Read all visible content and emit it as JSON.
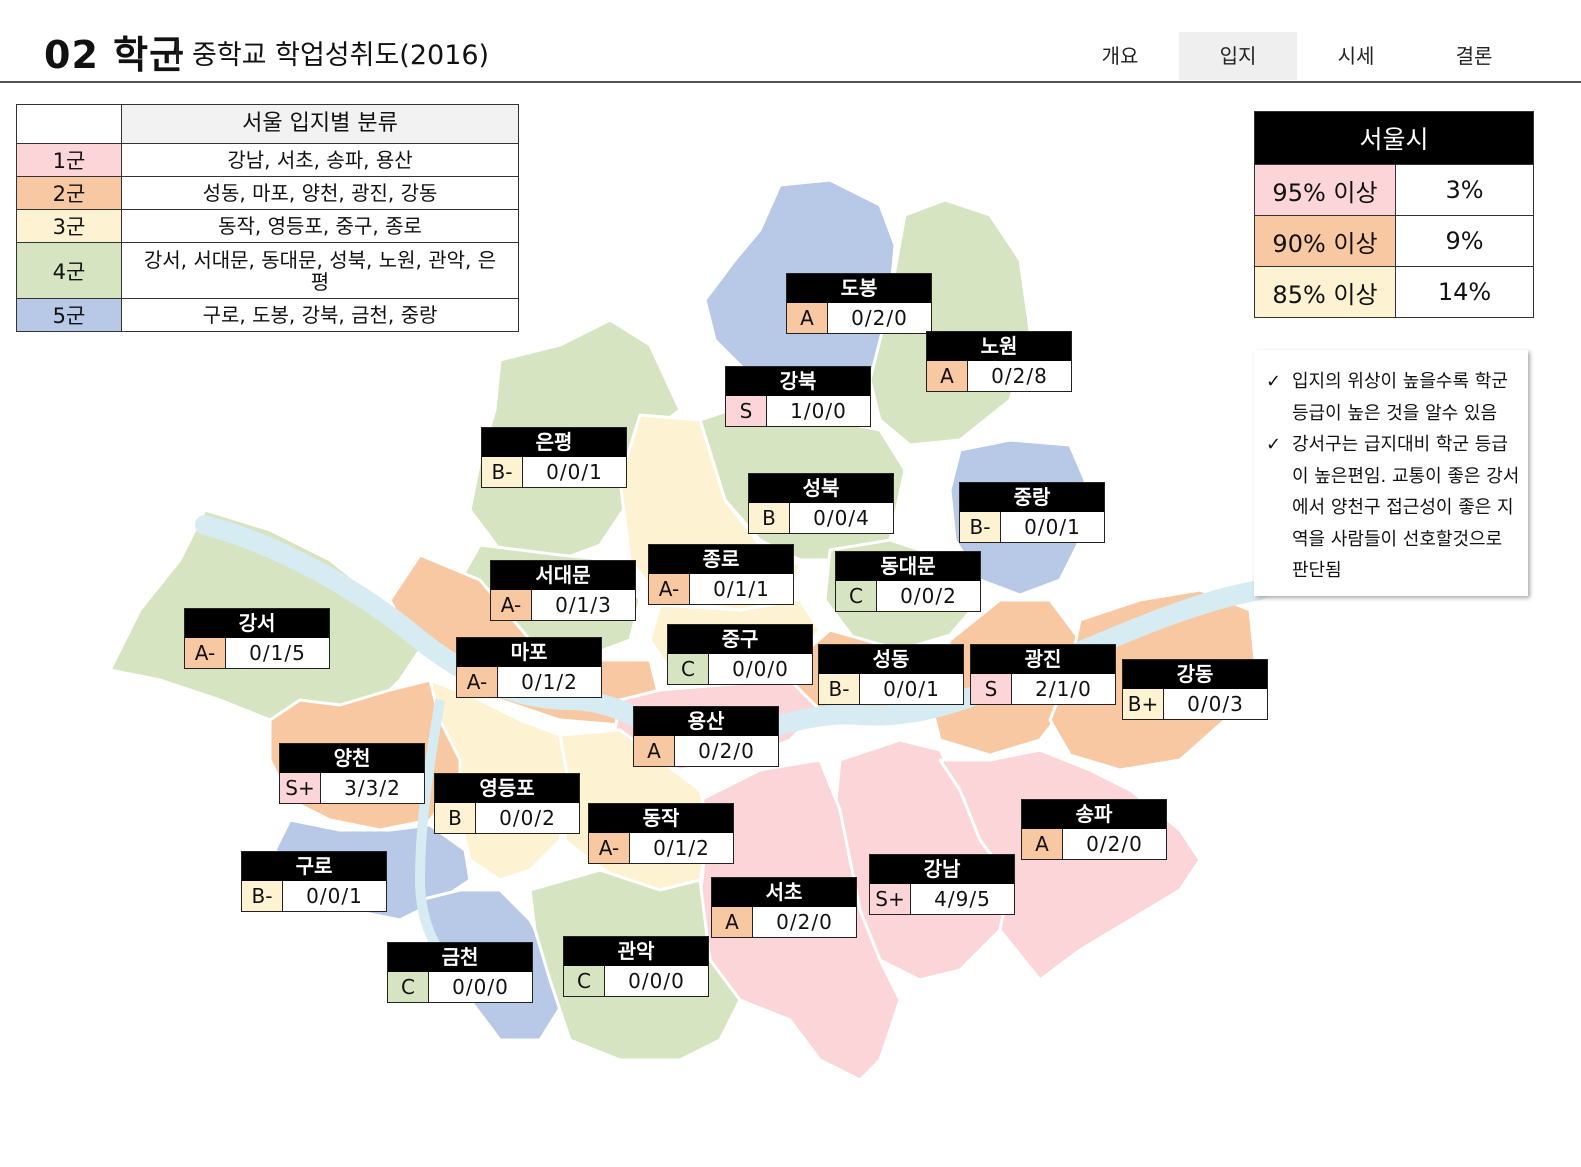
{
  "header": {
    "number": "02 학군",
    "subtitle": "중학교 학업성취도(2016)"
  },
  "tabs": [
    {
      "label": "개요",
      "active": false
    },
    {
      "label": "입지",
      "active": true
    },
    {
      "label": "시세",
      "active": false
    },
    {
      "label": "결론",
      "active": false
    }
  ],
  "colors": {
    "g1": "#fbd5d8",
    "g2": "#f8c8a2",
    "g3": "#fdf2d2",
    "g4": "#d6e4c1",
    "g5": "#b7c9e6",
    "river": "#d6ebf2"
  },
  "classification": {
    "title": "서울 입지별 분류",
    "rows": [
      {
        "group": "1군",
        "districts": "강남, 서초, 송파, 용산"
      },
      {
        "group": "2군",
        "districts": "성동, 마포, 양천, 광진, 강동"
      },
      {
        "group": "3군",
        "districts": "동작, 영등포, 중구, 종로"
      },
      {
        "group": "4군",
        "districts": "강서, 서대문, 동대문, 성북, 노원, 관악, 은평"
      },
      {
        "group": "5군",
        "districts": "구로, 도봉, 강북, 금천, 중랑"
      }
    ]
  },
  "seoul_stats": {
    "title": "서울시",
    "rows": [
      {
        "label": "95% 이상",
        "value": "3%"
      },
      {
        "label": "90% 이상",
        "value": "9%"
      },
      {
        "label": "85% 이상",
        "value": "14%"
      }
    ]
  },
  "notes": [
    "입지의 위상이 높을수록 학군 등급이 높은 것을 알수 있음",
    "강서구는 급지대비 학군 등급이 높은편임. 교통이 좋은 강서에서 양천구 접근성이 좋은 지역을 사람들이 선호할것으로 판단됨"
  ],
  "districts": [
    {
      "name": "도봉",
      "grade": "A",
      "score": "0/2/0"
    },
    {
      "name": "노원",
      "grade": "A",
      "score": "0/2/8"
    },
    {
      "name": "강북",
      "grade": "S",
      "score": "1/0/0"
    },
    {
      "name": "은평",
      "grade": "B-",
      "score": "0/0/1"
    },
    {
      "name": "성북",
      "grade": "B",
      "score": "0/0/4"
    },
    {
      "name": "중랑",
      "grade": "B-",
      "score": "0/0/1"
    },
    {
      "name": "종로",
      "grade": "A-",
      "score": "0/1/1"
    },
    {
      "name": "동대문",
      "grade": "C",
      "score": "0/0/2"
    },
    {
      "name": "서대문",
      "grade": "A-",
      "score": "0/1/3"
    },
    {
      "name": "강서",
      "grade": "A-",
      "score": "0/1/5"
    },
    {
      "name": "중구",
      "grade": "C",
      "score": "0/0/0"
    },
    {
      "name": "마포",
      "grade": "A-",
      "score": "0/1/2"
    },
    {
      "name": "성동",
      "grade": "B-",
      "score": "0/0/1"
    },
    {
      "name": "광진",
      "grade": "S",
      "score": "2/1/0"
    },
    {
      "name": "강동",
      "grade": "B+",
      "score": "0/0/3"
    },
    {
      "name": "용산",
      "grade": "A",
      "score": "0/2/0"
    },
    {
      "name": "양천",
      "grade": "S+",
      "score": "3/3/2"
    },
    {
      "name": "영등포",
      "grade": "B",
      "score": "0/0/2"
    },
    {
      "name": "동작",
      "grade": "A-",
      "score": "0/1/2"
    },
    {
      "name": "송파",
      "grade": "A",
      "score": "0/2/0"
    },
    {
      "name": "구로",
      "grade": "B-",
      "score": "0/0/1"
    },
    {
      "name": "강남",
      "grade": "S+",
      "score": "4/9/5"
    },
    {
      "name": "서초",
      "grade": "A",
      "score": "0/2/0"
    },
    {
      "name": "금천",
      "grade": "C",
      "score": "0/0/0"
    },
    {
      "name": "관악",
      "grade": "C",
      "score": "0/0/0"
    }
  ]
}
